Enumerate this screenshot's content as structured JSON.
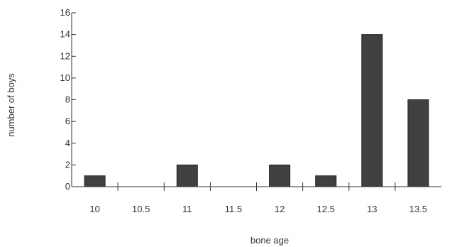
{
  "chart_data": {
    "type": "bar",
    "categories": [
      "10",
      "10.5",
      "11",
      "11.5",
      "12",
      "12.5",
      "13",
      "13.5"
    ],
    "values": [
      1,
      0,
      2,
      0,
      2,
      1,
      14,
      8
    ],
    "title": "",
    "xlabel": "bone age",
    "ylabel": "number of boys",
    "ylim": [
      0,
      16
    ],
    "yticks": [
      "0",
      "2",
      "4",
      "6",
      "8",
      "10",
      "12",
      "14",
      "16"
    ],
    "grid": false,
    "legend": "none",
    "bar_color": "#404040",
    "axis_color": "#333333"
  }
}
